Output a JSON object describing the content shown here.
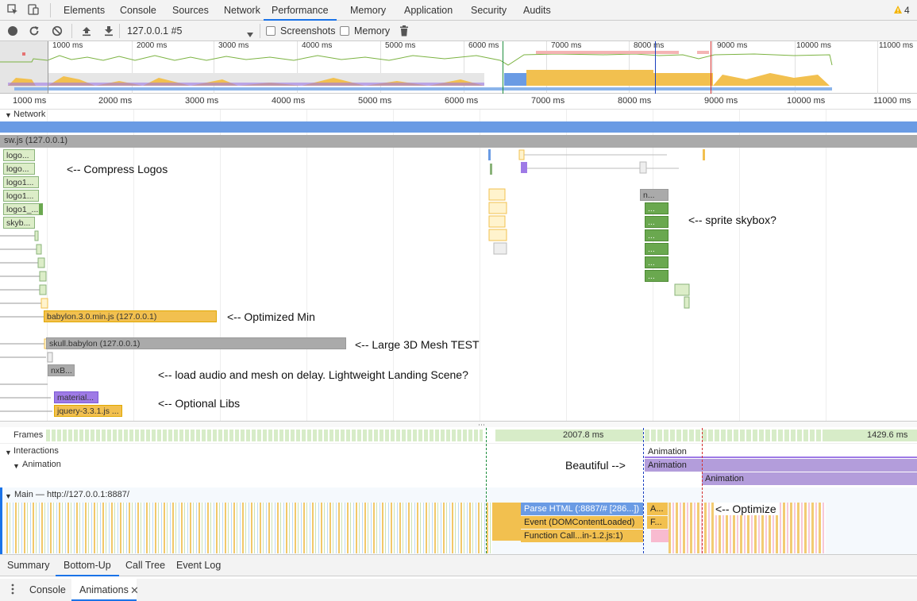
{
  "tabs": [
    "Elements",
    "Console",
    "Sources",
    "Network",
    "Performance",
    "Memory",
    "Application",
    "Security",
    "Audits"
  ],
  "active_tab": "Performance",
  "warning_count": "4",
  "toolbar": {
    "profile": "127.0.0.1 #5",
    "screenshots": "Screenshots",
    "memory": "Memory"
  },
  "overview_ticks": [
    "1000 ms",
    "2000 ms",
    "3000 ms",
    "4000 ms",
    "5000 ms",
    "6000 ms",
    "7000 ms",
    "8000 ms",
    "9000 ms",
    "10000 ms",
    "11000 ms"
  ],
  "ruler_ticks": [
    "1000 ms",
    "2000 ms",
    "3000 ms",
    "4000 ms",
    "5000 ms",
    "6000 ms",
    "7000 ms",
    "8000 ms",
    "9000 ms",
    "10000 ms",
    "11000 ms"
  ],
  "network": {
    "label": "Network",
    "sw": "sw.js (127.0.0.1)",
    "requests": [
      "logo...",
      "logo...",
      "logo1...",
      "logo1...",
      "logo1_...",
      "skyb..."
    ],
    "babylon": "babylon.3.0.min.js (127.0.0.1)",
    "skull": "skull.babylon (127.0.0.1)",
    "nxb": "nxB...",
    "material": "material...",
    "jquery": "jquery-3.3.1.js ...",
    "n_label": "n...",
    "small_label": "..."
  },
  "notes": {
    "compress": "<-- Compress Logos",
    "sprite": "<-- sprite skybox?",
    "optimized": "<-- Optimized Min",
    "mesh": "<-- Large 3D Mesh TEST",
    "delay": "<-- load audio and mesh on delay. Lightweight Landing Scene?",
    "optional": "<-- Optional Libs",
    "beautiful": "Beautiful -->",
    "optimize": "<-- Optimize"
  },
  "frames": {
    "label": "Frames",
    "f1": "2007.8 ms",
    "f2": "1429.6 ms"
  },
  "interactions": {
    "label": "Interactions",
    "animation": "Animation",
    "a1": "Animation",
    "a2": "Animation",
    "a3": "Animation"
  },
  "main": {
    "label": "Main — http://127.0.0.1:8887/",
    "parse": "Parse HTML (:8887/# [286...])",
    "event": "Event (DOMContentLoaded)",
    "func": "Function Call...in-1.2.js:1)",
    "a": "A...",
    "f": "F..."
  },
  "bottom_tabs": [
    "Summary",
    "Bottom-Up",
    "Call Tree",
    "Event Log"
  ],
  "active_bottom": "Bottom-Up",
  "drawer_tabs": [
    "Console",
    "Animations"
  ],
  "colors": {
    "accent": "#1a73e8",
    "scripting": "#f2c04f",
    "rendering": "#9e7ae6",
    "network_bar": "#6a9be4",
    "html": "#6a9be4",
    "painting": "#7cb342"
  }
}
